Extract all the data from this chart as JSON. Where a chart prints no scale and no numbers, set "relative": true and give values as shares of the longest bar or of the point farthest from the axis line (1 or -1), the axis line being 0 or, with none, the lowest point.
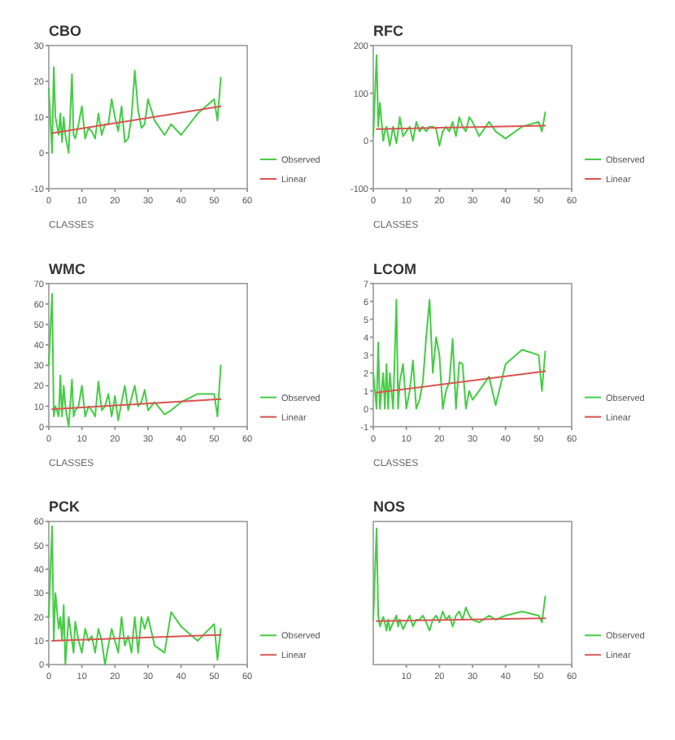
{
  "chart_data": [
    {
      "type": "line",
      "title": "CBO",
      "xlabel": "CLASSES",
      "xlim": [
        0,
        60
      ],
      "xticks": [
        0,
        10,
        20,
        30,
        40,
        50,
        60
      ],
      "ylim": [
        -10,
        30
      ],
      "yticks": [
        -10,
        0,
        10,
        20,
        30
      ],
      "legend": "right",
      "x": [
        0,
        1,
        1.5,
        2,
        3,
        3.5,
        4,
        4.5,
        5,
        6,
        7,
        7.5,
        8,
        9,
        10,
        11,
        12,
        13,
        14,
        15,
        16,
        17,
        18,
        19,
        20,
        21,
        22,
        23,
        24,
        25,
        26,
        27,
        28,
        29,
        30,
        32,
        35,
        37,
        40,
        45,
        50,
        51,
        52
      ],
      "series": [
        {
          "name": "Observed",
          "color": "#44cc44",
          "values": [
            18,
            0,
            24,
            10,
            5,
            11,
            3,
            10,
            5,
            0,
            22,
            5,
            4,
            8,
            13,
            4,
            7,
            6,
            4,
            11,
            5,
            8,
            8,
            15,
            10,
            6,
            13,
            3,
            4,
            10,
            23,
            12,
            7,
            8,
            15,
            9,
            5,
            8,
            5,
            11,
            15,
            9,
            21
          ]
        },
        {
          "name": "Linear",
          "type": "line",
          "color": "#d9534f",
          "values": [
            null,
            5.5,
            null,
            null,
            null,
            null,
            null,
            null,
            null,
            null,
            null,
            null,
            null,
            null,
            null,
            null,
            null,
            null,
            null,
            null,
            null,
            null,
            null,
            null,
            null,
            null,
            null,
            null,
            null,
            null,
            null,
            null,
            null,
            null,
            null,
            null,
            null,
            null,
            null,
            null,
            null,
            null,
            13
          ]
        }
      ]
    },
    {
      "type": "line",
      "title": "RFC",
      "xlabel": "CLASSES",
      "xlim": [
        0,
        60
      ],
      "xticks": [
        0,
        10,
        20,
        30,
        40,
        50,
        60
      ],
      "ylim": [
        -100,
        200
      ],
      "yticks": [
        -100,
        0,
        100,
        200
      ],
      "legend": "right",
      "x": [
        0,
        1,
        1.5,
        2,
        3,
        3.5,
        4,
        4.5,
        5,
        6,
        7,
        7.5,
        8,
        9,
        10,
        11,
        12,
        13,
        14,
        15,
        16,
        17,
        18,
        19,
        20,
        21,
        22,
        23,
        24,
        25,
        26,
        27,
        28,
        29,
        30,
        32,
        35,
        37,
        40,
        45,
        50,
        51,
        52
      ],
      "series": [
        {
          "name": "Observed",
          "color": "#44cc44",
          "values": [
            10,
            180,
            30,
            80,
            0,
            20,
            30,
            10,
            -10,
            30,
            -5,
            20,
            50,
            10,
            20,
            30,
            0,
            40,
            20,
            30,
            20,
            30,
            30,
            25,
            -10,
            20,
            30,
            20,
            40,
            10,
            50,
            30,
            20,
            50,
            40,
            10,
            40,
            20,
            5,
            30,
            40,
            20,
            60
          ]
        },
        {
          "name": "Linear",
          "type": "line",
          "color": "#d9534f",
          "values": [
            null,
            25,
            null,
            null,
            null,
            null,
            null,
            null,
            null,
            null,
            null,
            null,
            null,
            null,
            null,
            null,
            null,
            null,
            null,
            null,
            null,
            null,
            null,
            null,
            null,
            null,
            null,
            null,
            null,
            null,
            null,
            null,
            null,
            null,
            null,
            null,
            null,
            null,
            null,
            null,
            null,
            null,
            32
          ]
        }
      ]
    },
    {
      "type": "line",
      "title": "WMC",
      "xlabel": "CLASSES",
      "xlim": [
        0,
        60
      ],
      "xticks": [
        0,
        10,
        20,
        30,
        40,
        50,
        60
      ],
      "ylim": [
        0,
        70
      ],
      "yticks": [
        0,
        10,
        20,
        30,
        40,
        50,
        60,
        70
      ],
      "legend": "right",
      "x": [
        0,
        1,
        1.5,
        2,
        3,
        3.5,
        4,
        4.5,
        5,
        6,
        7,
        7.5,
        8,
        9,
        10,
        11,
        12,
        13,
        14,
        15,
        16,
        17,
        18,
        19,
        20,
        21,
        22,
        23,
        24,
        25,
        26,
        27,
        28,
        29,
        30,
        32,
        35,
        37,
        40,
        45,
        50,
        51,
        52
      ],
      "series": [
        {
          "name": "Observed",
          "color": "#44cc44",
          "values": [
            30,
            65,
            5,
            10,
            5,
            25,
            5,
            20,
            10,
            0,
            23,
            5,
            8,
            10,
            20,
            5,
            10,
            8,
            5,
            22,
            8,
            10,
            16,
            5,
            15,
            3,
            12,
            20,
            8,
            14,
            20,
            10,
            12,
            18,
            8,
            12,
            6,
            8,
            12,
            16,
            16,
            5,
            30
          ]
        },
        {
          "name": "Linear",
          "type": "line",
          "color": "#d9534f",
          "values": [
            null,
            8.5,
            null,
            null,
            null,
            null,
            null,
            null,
            null,
            null,
            null,
            null,
            null,
            null,
            null,
            null,
            null,
            null,
            null,
            null,
            null,
            null,
            null,
            null,
            null,
            null,
            null,
            null,
            null,
            null,
            null,
            null,
            null,
            null,
            null,
            null,
            null,
            null,
            null,
            null,
            null,
            null,
            13.5
          ]
        }
      ]
    },
    {
      "type": "line",
      "title": "LCOM",
      "xlabel": "CLASSES",
      "xlim": [
        0,
        60
      ],
      "xticks": [
        0,
        10,
        20,
        30,
        40,
        50,
        60
      ],
      "ylim": [
        -1,
        7
      ],
      "yticks": [
        -1,
        0,
        1,
        2,
        3,
        4,
        5,
        6,
        7
      ],
      "legend": "right",
      "x": [
        0,
        1,
        1.5,
        2,
        3,
        3.5,
        4,
        4.5,
        5,
        6,
        7,
        7.5,
        8,
        9,
        10,
        11,
        12,
        13,
        14,
        15,
        16,
        17,
        18,
        19,
        20,
        21,
        22,
        23,
        24,
        25,
        26,
        27,
        28,
        29,
        30,
        32,
        35,
        37,
        40,
        45,
        50,
        51,
        52
      ],
      "series": [
        {
          "name": "Observed",
          "color": "#44cc44",
          "values": [
            2,
            0,
            3.7,
            0,
            2,
            0,
            2.5,
            0,
            2,
            0,
            6.1,
            0,
            1.5,
            2.5,
            0,
            1,
            2.7,
            0,
            0.5,
            1.5,
            4,
            6.1,
            2,
            4,
            3,
            0,
            1,
            1.5,
            3.9,
            0,
            2.6,
            2.5,
            0,
            1,
            0.5,
            1,
            1.8,
            0.2,
            2.5,
            3.3,
            3,
            1,
            3.2
          ]
        },
        {
          "name": "Linear",
          "type": "line",
          "color": "#d9534f",
          "values": [
            null,
            0.9,
            null,
            null,
            null,
            null,
            null,
            null,
            null,
            null,
            null,
            null,
            null,
            null,
            null,
            null,
            null,
            null,
            null,
            null,
            null,
            null,
            null,
            null,
            null,
            null,
            null,
            null,
            null,
            null,
            null,
            null,
            null,
            null,
            null,
            null,
            null,
            null,
            null,
            null,
            null,
            null,
            2.1
          ]
        }
      ]
    },
    {
      "type": "line",
      "title": "PCK",
      "xlim": [
        0,
        60
      ],
      "xticks": [
        0,
        10,
        20,
        30,
        40,
        50,
        60
      ],
      "ylim": [
        0,
        60
      ],
      "yticks": [
        0,
        10,
        20,
        30,
        40,
        50,
        60
      ],
      "legend": "right",
      "x": [
        0,
        1,
        1.5,
        2,
        3,
        3.5,
        4,
        4.5,
        5,
        6,
        7,
        7.5,
        8,
        9,
        10,
        11,
        12,
        13,
        14,
        15,
        16,
        17,
        18,
        19,
        20,
        21,
        22,
        23,
        24,
        25,
        26,
        27,
        28,
        29,
        30,
        32,
        35,
        37,
        40,
        45,
        50,
        51,
        52
      ],
      "series": [
        {
          "name": "Observed",
          "color": "#44cc44",
          "values": [
            20,
            58,
            10,
            30,
            15,
            20,
            10,
            25,
            0,
            20,
            10,
            5,
            18,
            10,
            5,
            15,
            10,
            12,
            5,
            15,
            10,
            0,
            8,
            15,
            10,
            5,
            20,
            8,
            12,
            5,
            20,
            5,
            20,
            15,
            20,
            8,
            5,
            22,
            16,
            10,
            17,
            2,
            15
          ]
        },
        {
          "name": "Linear",
          "type": "line",
          "color": "#d9534f",
          "values": [
            null,
            10,
            null,
            null,
            null,
            null,
            null,
            null,
            null,
            null,
            null,
            null,
            null,
            null,
            null,
            null,
            null,
            null,
            null,
            null,
            null,
            null,
            null,
            null,
            null,
            null,
            null,
            null,
            null,
            null,
            null,
            null,
            null,
            null,
            null,
            null,
            null,
            null,
            null,
            null,
            null,
            null,
            12.5
          ]
        }
      ]
    },
    {
      "type": "line",
      "title": "NOS",
      "relative": true,
      "tick_labels": "x",
      "xlim": [
        0,
        60
      ],
      "xticks": [
        10,
        20,
        30,
        40,
        50,
        60
      ],
      "legend": "right",
      "x": [
        0,
        1,
        1.5,
        2,
        3,
        3.5,
        4,
        4.5,
        5,
        6,
        7,
        7.5,
        8,
        9,
        10,
        11,
        12,
        13,
        14,
        15,
        16,
        17,
        18,
        19,
        20,
        21,
        22,
        23,
        24,
        25,
        26,
        27,
        28,
        29,
        30,
        32,
        35,
        37,
        40,
        45,
        50,
        51,
        52
      ],
      "series": [
        {
          "name": "Observed",
          "color": "#44cc44",
          "values": [
            0.33,
            1,
            0.36,
            0.28,
            0.35,
            0.31,
            0.25,
            0.33,
            0.25,
            0.31,
            0.36,
            0.28,
            0.33,
            0.26,
            0.31,
            0.36,
            0.28,
            0.33,
            0.33,
            0.36,
            0.31,
            0.25,
            0.33,
            0.36,
            0.31,
            0.39,
            0.33,
            0.36,
            0.28,
            0.36,
            0.39,
            0.33,
            0.42,
            0.36,
            0.33,
            0.31,
            0.36,
            0.33,
            0.36,
            0.39,
            0.36,
            0.31,
            0.5
          ]
        },
        {
          "name": "Linear",
          "type": "line",
          "color": "#d9534f",
          "values": [
            null,
            0.32,
            null,
            null,
            null,
            null,
            null,
            null,
            null,
            null,
            null,
            null,
            null,
            null,
            null,
            null,
            null,
            null,
            null,
            null,
            null,
            null,
            null,
            null,
            null,
            null,
            null,
            null,
            null,
            null,
            null,
            null,
            null,
            null,
            null,
            null,
            null,
            null,
            null,
            null,
            null,
            null,
            0.34
          ]
        }
      ]
    }
  ]
}
